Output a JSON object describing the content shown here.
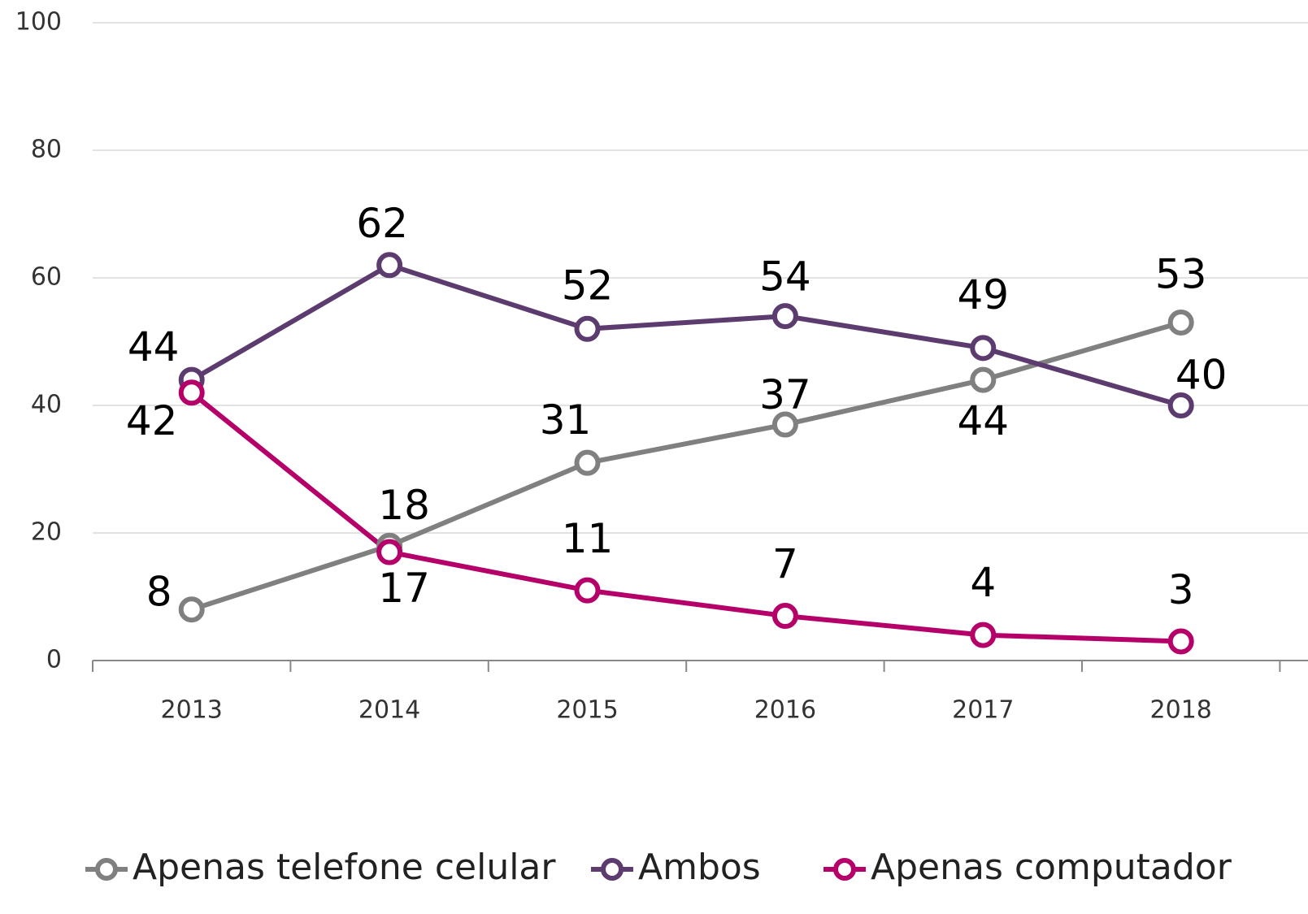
{
  "chart_data": {
    "type": "line",
    "categories": [
      "2013",
      "2014",
      "2015",
      "2016",
      "2017",
      "2018"
    ],
    "series": [
      {
        "name": "Apenas telefone celular",
        "color": "#808080",
        "values": [
          8,
          18,
          31,
          37,
          44,
          53
        ]
      },
      {
        "name": "Ambos",
        "color": "#5c3b6e",
        "values": [
          44,
          62,
          52,
          54,
          49,
          40
        ]
      },
      {
        "name": "Apenas computador",
        "color": "#b5006a",
        "values": [
          42,
          17,
          11,
          7,
          4,
          3
        ]
      }
    ],
    "ylim": [
      0,
      100
    ],
    "yticks": [
      0,
      20,
      40,
      60,
      80,
      100
    ],
    "grid": true,
    "legend": "bottom"
  }
}
